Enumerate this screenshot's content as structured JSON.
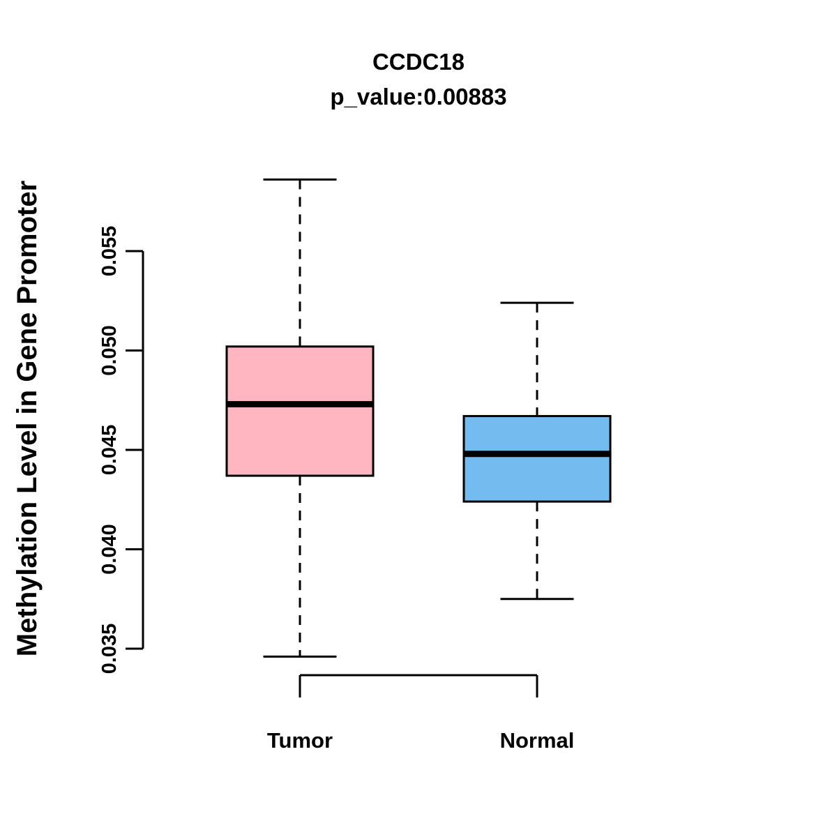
{
  "title": "CCDC18",
  "subtitle": "p_value:0.00883",
  "ylabel": "Methylation Level in Gene Promoter",
  "colors": {
    "tumor_box": "#FFB6C1",
    "normal_box": "#72BCF0",
    "stroke": "#000000",
    "background": "#FFFFFF"
  },
  "chart_data": {
    "type": "boxplot",
    "title": "CCDC18",
    "subtitle": "p_value:0.00883",
    "xlabel": "",
    "ylabel": "Methylation Level in Gene Promoter",
    "categories": [
      "Tumor",
      "Normal"
    ],
    "yticks": [
      0.035,
      0.04,
      0.045,
      0.05,
      0.055
    ],
    "ytick_format_decimals": 3,
    "ylim": [
      0.0335,
      0.0595
    ],
    "grid": false,
    "legend": false,
    "series": [
      {
        "name": "Tumor",
        "color": "#FFB6C1",
        "whisker_low": 0.0346,
        "q1": 0.0437,
        "median": 0.0473,
        "q3": 0.0502,
        "whisker_high": 0.0586
      },
      {
        "name": "Normal",
        "color": "#72BCF0",
        "whisker_low": 0.0375,
        "q1": 0.0424,
        "median": 0.0448,
        "q3": 0.0467,
        "whisker_high": 0.0524
      }
    ]
  }
}
